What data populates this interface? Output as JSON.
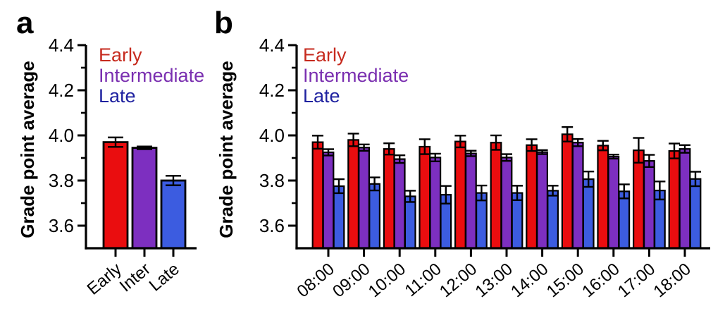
{
  "panels": [
    {
      "letter": "a",
      "ylabel": "Grade point average",
      "legend": [
        {
          "label": "Early",
          "color": "#c62a1e"
        },
        {
          "label": "Intermediate",
          "color": "#7a2fb0"
        },
        {
          "label": "Late",
          "color": "#1f22a0"
        }
      ]
    },
    {
      "letter": "b",
      "ylabel": "Grade point average",
      "legend": [
        {
          "label": "Early",
          "color": "#c62a1e"
        },
        {
          "label": "Intermediate",
          "color": "#7a2fb0"
        },
        {
          "label": "Late",
          "color": "#1f22a0"
        }
      ]
    }
  ],
  "chart_data": [
    {
      "type": "bar",
      "panel": "a",
      "title": "",
      "xlabel": "",
      "ylabel": "Grade point average",
      "ylim": [
        3.5,
        4.4
      ],
      "yticks": [
        3.6,
        3.8,
        4.0,
        4.2,
        4.4
      ],
      "minor_yticks": [
        3.7,
        3.9,
        4.1,
        4.3
      ],
      "grid": false,
      "legend_position": "upper-left",
      "legend": [
        "Early",
        "Intermediate",
        "Late"
      ],
      "categories": [
        "Early",
        "Inter",
        "Late"
      ],
      "values": [
        3.97,
        3.945,
        3.8
      ],
      "errors": [
        0.021,
        0.006,
        0.021
      ],
      "bar_colors": [
        "#ea0d0f",
        "#7d2fc0",
        "#3c5ce0"
      ]
    },
    {
      "type": "bar",
      "panel": "b",
      "title": "",
      "xlabel": "",
      "ylabel": "Grade point average",
      "ylim": [
        3.5,
        4.4
      ],
      "yticks": [
        3.6,
        3.8,
        4.0,
        4.2,
        4.4
      ],
      "minor_yticks": [
        3.7,
        3.9,
        4.1,
        4.3
      ],
      "grid": false,
      "legend_position": "upper-left",
      "legend": [
        "Early",
        "Intermediate",
        "Late"
      ],
      "categories": [
        "08:00",
        "09:00",
        "10:00",
        "11:00",
        "12:00",
        "13:00",
        "14:00",
        "15:00",
        "16:00",
        "17:00",
        "18:00"
      ],
      "series": [
        {
          "name": "Early",
          "color": "#ea0d0f",
          "values": [
            3.97,
            3.98,
            3.94,
            3.95,
            3.973,
            3.968,
            3.957,
            4.005,
            3.955,
            3.934,
            3.931
          ],
          "errors": [
            0.029,
            0.028,
            0.025,
            0.033,
            0.026,
            0.032,
            0.026,
            0.032,
            0.021,
            0.055,
            0.033
          ]
        },
        {
          "name": "Intermediate",
          "color": "#7d2fc0",
          "values": [
            3.925,
            3.946,
            3.895,
            3.902,
            3.92,
            3.902,
            3.926,
            3.968,
            3.906,
            3.887,
            3.94
          ],
          "errors": [
            0.014,
            0.014,
            0.017,
            0.017,
            0.012,
            0.015,
            0.009,
            0.016,
            0.009,
            0.027,
            0.017
          ]
        },
        {
          "name": "Late",
          "color": "#3c5ce0",
          "values": [
            3.775,
            3.785,
            3.73,
            3.737,
            3.745,
            3.745,
            3.755,
            3.806,
            3.752,
            3.756,
            3.807
          ],
          "errors": [
            0.031,
            0.029,
            0.025,
            0.039,
            0.033,
            0.032,
            0.022,
            0.034,
            0.031,
            0.04,
            0.032
          ]
        }
      ]
    }
  ]
}
